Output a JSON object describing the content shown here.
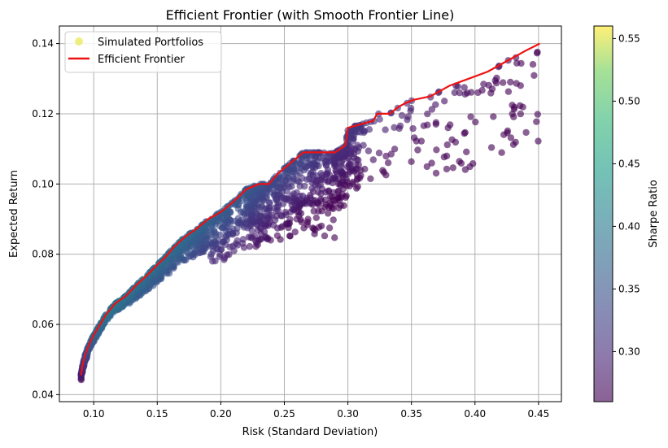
{
  "chart_data": {
    "type": "scatter",
    "title": "Efficient Frontier (with Smooth Frontier Line)",
    "xlabel": "Risk (Standard Deviation)",
    "ylabel": "Expected Return",
    "xlim": [
      0.073,
      0.468
    ],
    "ylim": [
      0.038,
      0.145
    ],
    "x_ticks": [
      0.1,
      0.15,
      0.2,
      0.25,
      0.3,
      0.35,
      0.4,
      0.45
    ],
    "x_tick_labels": [
      "0.10",
      "0.15",
      "0.20",
      "0.25",
      "0.30",
      "0.35",
      "0.40",
      "0.45"
    ],
    "y_ticks": [
      0.04,
      0.06,
      0.08,
      0.1,
      0.12,
      0.14
    ],
    "y_tick_labels": [
      "0.04",
      "0.06",
      "0.08",
      "0.10",
      "0.12",
      "0.14"
    ],
    "grid": true,
    "legend": {
      "placement": "top-left",
      "entries": [
        {
          "label": "Simulated Portfolios",
          "kind": "marker",
          "color": "#e8e84a"
        },
        {
          "label": "Efficient Frontier",
          "kind": "line",
          "color": "#ee1111"
        }
      ]
    },
    "colorbar": {
      "label": "Sharpe Ratio",
      "range": [
        0.26,
        0.56
      ],
      "ticks": [
        0.3,
        0.35,
        0.4,
        0.45,
        0.5,
        0.55
      ],
      "tick_labels": [
        "0.30",
        "0.35",
        "0.40",
        "0.45",
        "0.50",
        "0.55"
      ],
      "colormap": "viridis"
    },
    "series": [
      {
        "name": "Efficient Frontier",
        "color": "#ee1111",
        "points": [
          [
            0.09,
            0.0455
          ],
          [
            0.091,
            0.048
          ],
          [
            0.093,
            0.051
          ],
          [
            0.096,
            0.054
          ],
          [
            0.1,
            0.057
          ],
          [
            0.105,
            0.06
          ],
          [
            0.11,
            0.063
          ],
          [
            0.117,
            0.066
          ],
          [
            0.125,
            0.068
          ],
          [
            0.133,
            0.071
          ],
          [
            0.142,
            0.074
          ],
          [
            0.15,
            0.077
          ],
          [
            0.156,
            0.079
          ],
          [
            0.163,
            0.082
          ],
          [
            0.172,
            0.085
          ],
          [
            0.18,
            0.087
          ],
          [
            0.19,
            0.09
          ],
          [
            0.2,
            0.092
          ],
          [
            0.21,
            0.095
          ],
          [
            0.22,
            0.0985
          ],
          [
            0.23,
            0.1
          ],
          [
            0.238,
            0.1
          ],
          [
            0.245,
            0.103
          ],
          [
            0.255,
            0.106
          ],
          [
            0.265,
            0.109
          ],
          [
            0.29,
            0.109
          ],
          [
            0.298,
            0.111
          ],
          [
            0.3,
            0.116
          ],
          [
            0.32,
            0.118
          ],
          [
            0.323,
            0.12
          ],
          [
            0.333,
            0.12
          ],
          [
            0.34,
            0.122
          ],
          [
            0.345,
            0.123
          ],
          [
            0.352,
            0.124
          ],
          [
            0.365,
            0.125
          ],
          [
            0.38,
            0.128
          ],
          [
            0.395,
            0.13
          ],
          [
            0.41,
            0.132
          ],
          [
            0.42,
            0.134
          ],
          [
            0.43,
            0.136
          ],
          [
            0.44,
            0.138
          ],
          [
            0.451,
            0.14
          ]
        ]
      }
    ],
    "scatter_generation": {
      "count": 1700,
      "upper_frontier_matches_line": true,
      "sharpe_color_scale": "viridis"
    }
  }
}
